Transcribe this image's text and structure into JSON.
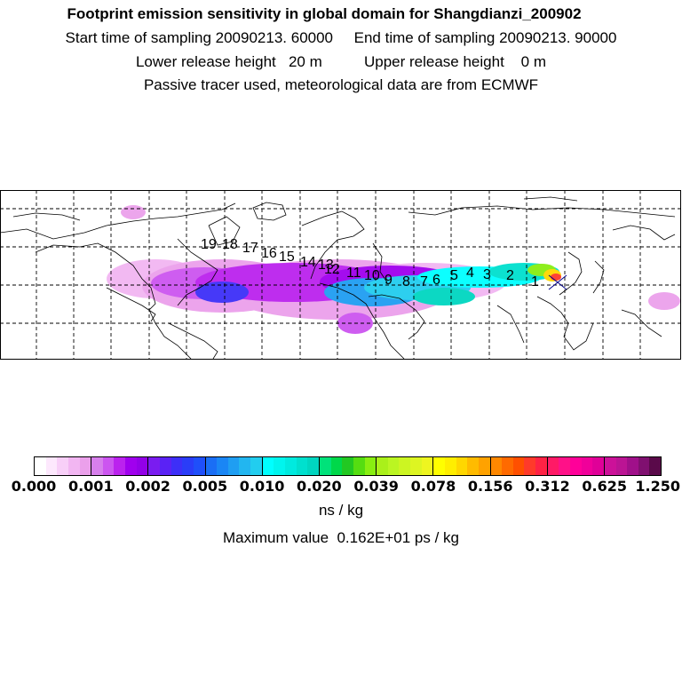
{
  "header": {
    "title": "Footprint emission sensitivity in global domain for Shangdianzi_200902",
    "line2": "Start time of sampling 20090213. 60000     End time of sampling 20090213. 90000",
    "line3": "Lower release height   20 m          Upper release height    0 m",
    "line4": "Passive tracer used, meteorological data are from ECMWF"
  },
  "trajectory_labels": [
    "1",
    "2",
    "3",
    "4",
    "5",
    "6",
    "7",
    "8",
    "9",
    "10",
    "11",
    "12",
    "13",
    "14",
    "15",
    "16",
    "17",
    "18",
    "19"
  ],
  "colorbar": {
    "ticks": [
      "0.000",
      "0.001",
      "0.002",
      "0.005",
      "0.010",
      "0.020",
      "0.039",
      "0.078",
      "0.156",
      "0.312",
      "0.625",
      "1.250"
    ],
    "colors": [
      [
        "#ffffff",
        "#fde8fd",
        "#f8cff8",
        "#f2b6f2",
        "#eba0eb"
      ],
      [
        "#d77fec",
        "#cc55f0",
        "#bb22ee",
        "#a000ee",
        "#9300e8"
      ],
      [
        "#7a1cf0",
        "#5a22f5",
        "#3d2ff8",
        "#2a3df8",
        "#1f4ffa"
      ],
      [
        "#1a6ef5",
        "#1a86f5",
        "#1f9ef2",
        "#22b6f0",
        "#22cdef"
      ],
      [
        "#00ffff",
        "#00f5ee",
        "#00eadf",
        "#00e0ce",
        "#00d6c0"
      ],
      [
        "#00e27a",
        "#00d84a",
        "#22c822",
        "#55dd11",
        "#88ee11"
      ],
      [
        "#aaf01a",
        "#bbf522",
        "#ccf522",
        "#ddf522",
        "#eef520"
      ],
      [
        "#ffff00",
        "#ffee00",
        "#ffd700",
        "#ffbb00",
        "#ffa200"
      ],
      [
        "#ff8800",
        "#ff6a00",
        "#ff5000",
        "#ff3a2a",
        "#ff2244"
      ],
      [
        "#ff1a66",
        "#ff1188",
        "#ff0099",
        "#f0009a",
        "#e00098"
      ],
      [
        "#cc1199",
        "#bb1494",
        "#a0108a",
        "#801070",
        "#5a0a4a"
      ]
    ],
    "unit": "ns / kg"
  },
  "max_line": "Maximum value  0.162E+01 ps / kg"
}
